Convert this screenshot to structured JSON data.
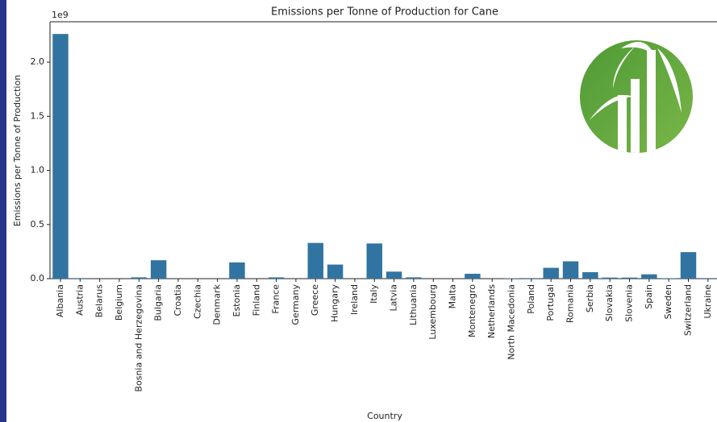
{
  "chart_data": {
    "type": "bar",
    "title": "Emissions per Tonne of Production for Cane",
    "x_label": "Country",
    "y_label": "Emissions per Tonne of Production",
    "y_offset_label": "1e9",
    "color": "#3274a1",
    "categories": [
      "Albania",
      "Austria",
      "Belarus",
      "Belgium",
      "Bosnia and Herzegovina",
      "Bulgaria",
      "Croatia",
      "Czechia",
      "Denmark",
      "Estonia",
      "Finland",
      "France",
      "Germany",
      "Greece",
      "Hungary",
      "Ireland",
      "Italy",
      "Latvia",
      "Lithuania",
      "Luxembourg",
      "Malta",
      "Montenegro",
      "Netherlands",
      "North Macedonia",
      "Poland",
      "Portugal",
      "Romania",
      "Serbia",
      "Slovakia",
      "Slovenia",
      "Spain",
      "Sweden",
      "Switzerland",
      "Ukraine"
    ],
    "values": [
      2260000000,
      5000000,
      0,
      0,
      12000000,
      170000000,
      0,
      0,
      0,
      150000000,
      0,
      12000000,
      0,
      330000000,
      130000000,
      0,
      325000000,
      65000000,
      12000000,
      0,
      0,
      45000000,
      0,
      4000000,
      5000000,
      100000000,
      160000000,
      60000000,
      10000000,
      10000000,
      40000000,
      4000000,
      245000000,
      5000000
    ],
    "ylim": [
      0,
      2373000000
    ],
    "yticks": [
      {
        "value": 0,
        "label": "0.0"
      },
      {
        "value": 500000000,
        "label": "0.5"
      },
      {
        "value": 1000000000,
        "label": "1.0"
      },
      {
        "value": 1500000000,
        "label": "1.5"
      },
      {
        "value": 2000000000,
        "label": "2.0"
      }
    ],
    "grid": false
  }
}
